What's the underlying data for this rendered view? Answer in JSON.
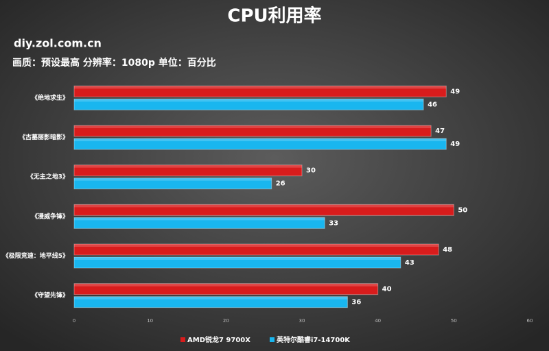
{
  "chart_data": {
    "type": "bar",
    "orientation": "horizontal",
    "title": "CPU利用率",
    "source": "diy.zol.com.cn",
    "subtitle": "画质：预设最高    分辨率：1080p  单位：百分比",
    "categories": [
      "《绝地求生》",
      "《古墓丽影暗影》",
      "《无主之地3》",
      "《漫威争锋》",
      "《极限竞速：地平线5》",
      "《守望先锋》"
    ],
    "series": [
      {
        "name": "AMD锐龙7 9700X",
        "color": "#d81c1c",
        "values": [
          49,
          47,
          30,
          50,
          48,
          40
        ]
      },
      {
        "name": "英特尔酷睿i7-14700K",
        "color": "#19b6ef",
        "values": [
          46,
          49,
          26,
          33,
          43,
          36
        ]
      }
    ],
    "xlim": [
      0,
      60
    ],
    "xticks": [
      0,
      10,
      20,
      30,
      40,
      50,
      60
    ],
    "legend": "bottom"
  }
}
